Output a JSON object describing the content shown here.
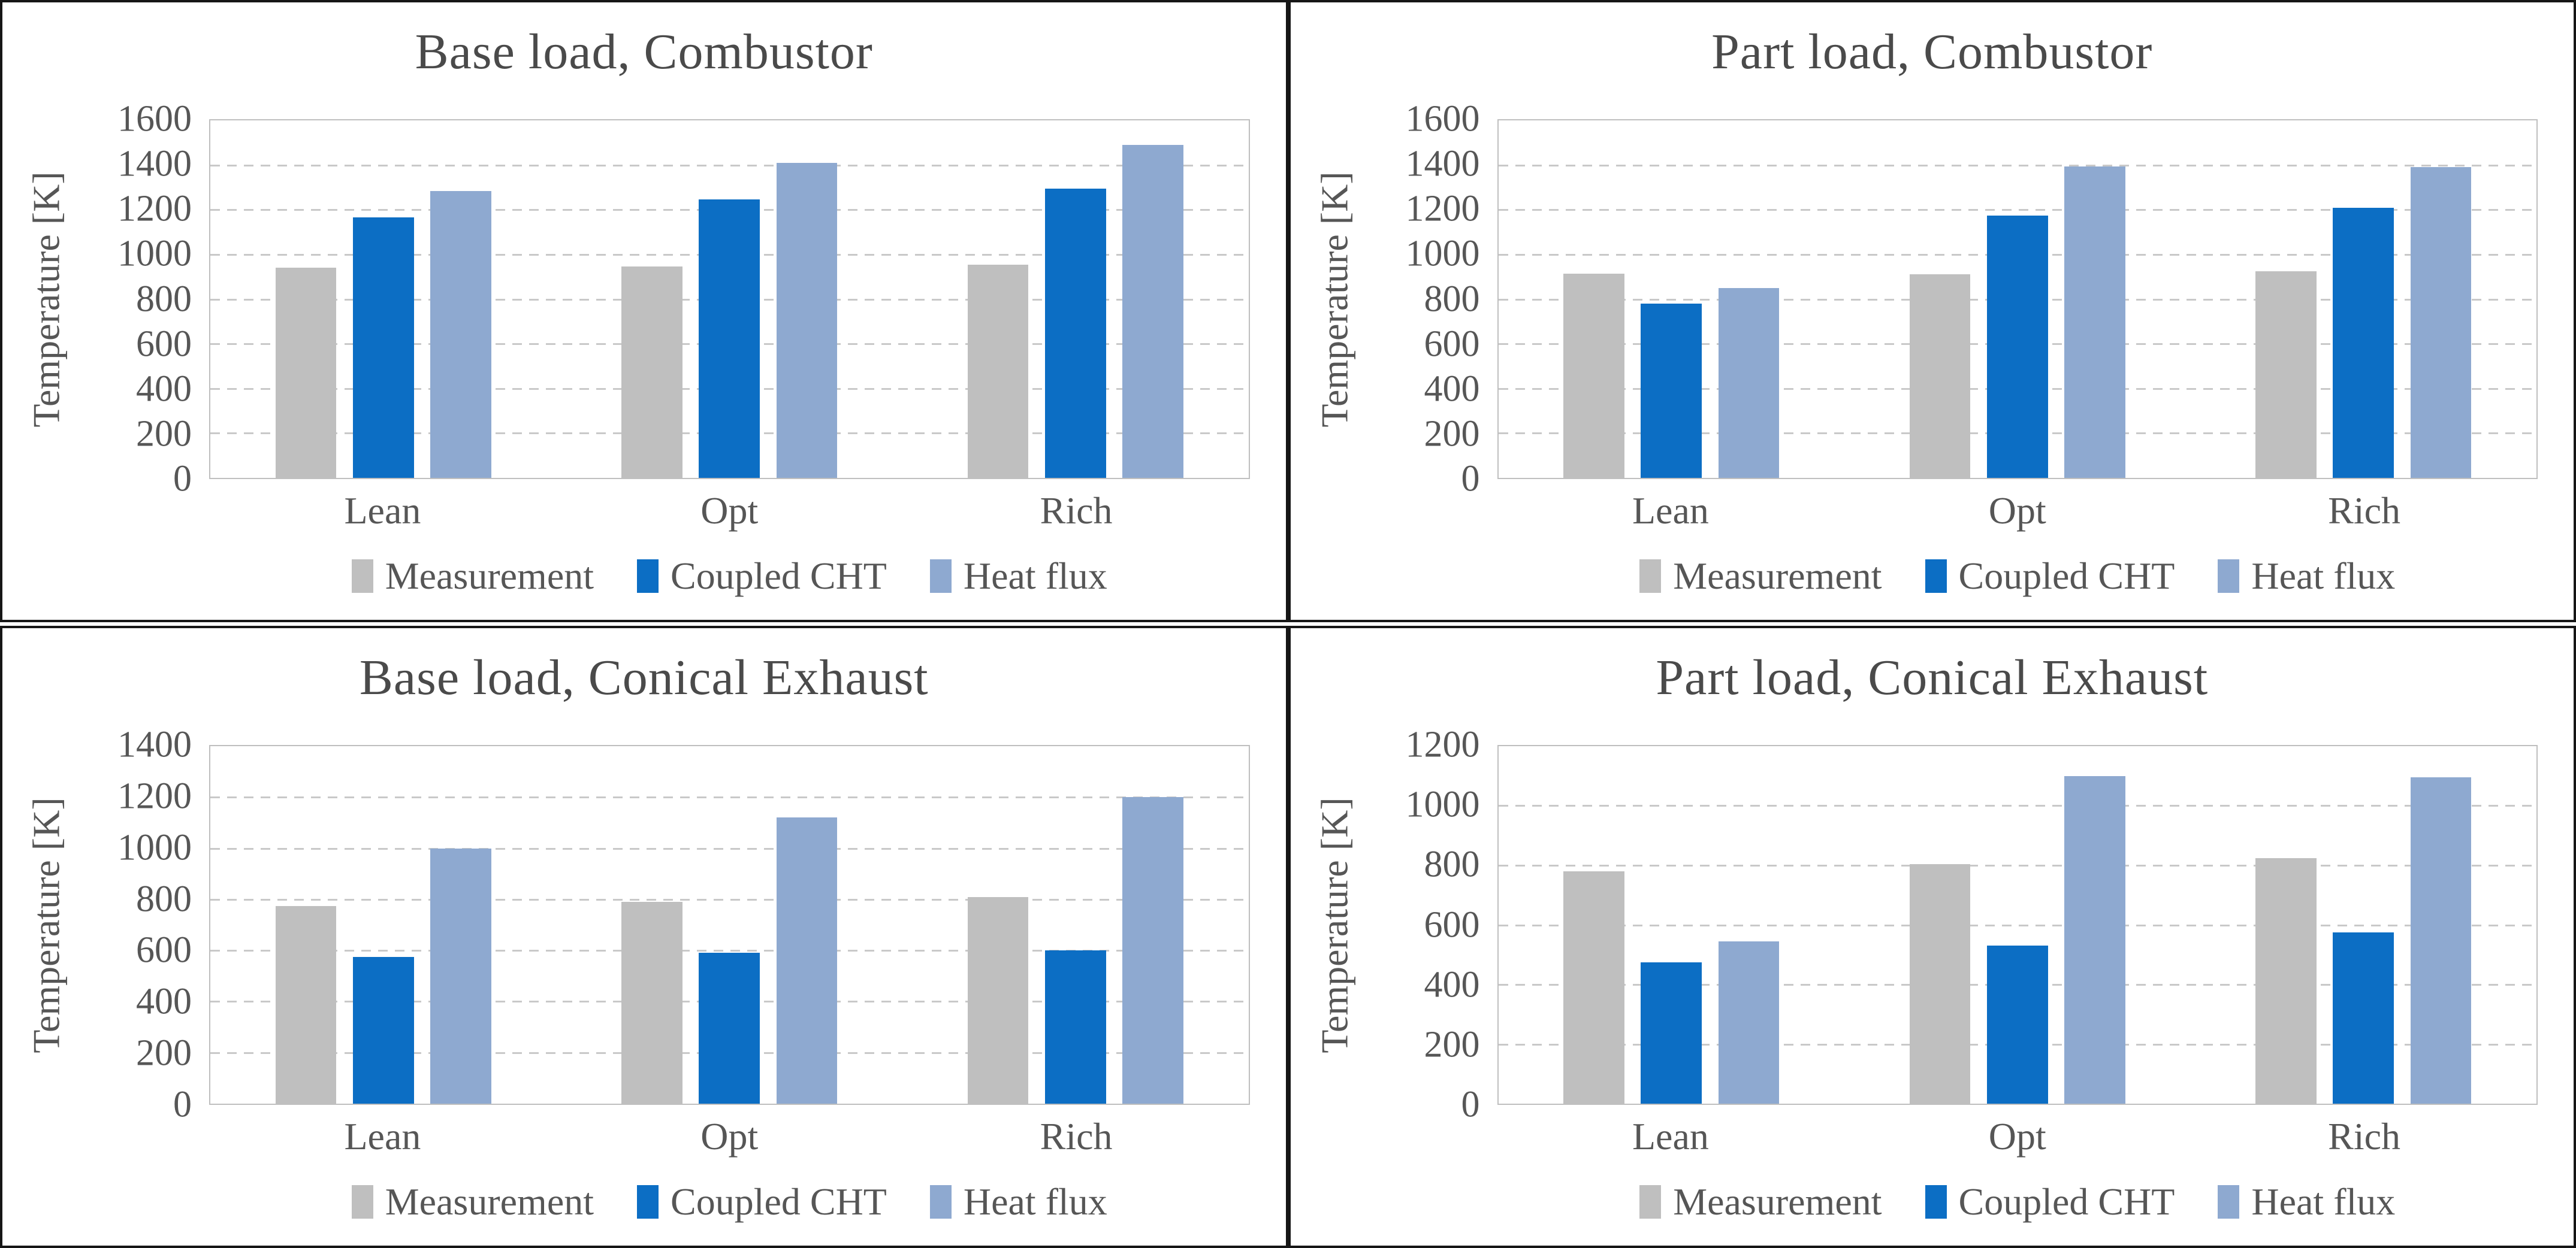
{
  "figure": {
    "ylabel_shared": "Temperature [K]",
    "border_color": "#161616",
    "gridline_color": "#c9c9c9",
    "axis_color": "#bfbfbf",
    "text_color": "#565656"
  },
  "chart_data": [
    {
      "type": "bar",
      "title": "Base load, Combustor",
      "ylabel": "Temperature [K]",
      "ylim": [
        0,
        1600
      ],
      "ytick_step": 200,
      "grid": true,
      "legend_position": "bottom",
      "categories": [
        "Lean",
        "Opt",
        "Rich"
      ],
      "series": [
        {
          "name": "Measurement",
          "color": "#bfbfbf",
          "values": [
            940,
            945,
            955
          ]
        },
        {
          "name": "Coupled CHT",
          "color": "#0c6ec4",
          "values": [
            1165,
            1245,
            1295
          ]
        },
        {
          "name": "Heat flux",
          "color": "#8ea9d0",
          "values": [
            1285,
            1410,
            1490
          ]
        }
      ]
    },
    {
      "type": "bar",
      "title": "Part load, Combustor",
      "ylabel": "Temperature [K]",
      "ylim": [
        0,
        1600
      ],
      "ytick_step": 200,
      "grid": true,
      "legend_position": "bottom",
      "categories": [
        "Lean",
        "Opt",
        "Rich"
      ],
      "series": [
        {
          "name": "Measurement",
          "color": "#bfbfbf",
          "values": [
            915,
            910,
            925
          ]
        },
        {
          "name": "Coupled CHT",
          "color": "#0c6ec4",
          "values": [
            780,
            1175,
            1210
          ]
        },
        {
          "name": "Heat flux",
          "color": "#8ea9d0",
          "values": [
            850,
            1395,
            1390
          ]
        }
      ]
    },
    {
      "type": "bar",
      "title": "Base load, Conical Exhaust",
      "ylabel": "Temperature [K]",
      "ylim": [
        0,
        1400
      ],
      "ytick_step": 200,
      "grid": true,
      "legend_position": "bottom",
      "categories": [
        "Lean",
        "Opt",
        "Rich"
      ],
      "series": [
        {
          "name": "Measurement",
          "color": "#bfbfbf",
          "values": [
            775,
            790,
            810
          ]
        },
        {
          "name": "Coupled CHT",
          "color": "#0c6ec4",
          "values": [
            575,
            590,
            600
          ]
        },
        {
          "name": "Heat flux",
          "color": "#8ea9d0",
          "values": [
            1000,
            1120,
            1200
          ]
        }
      ]
    },
    {
      "type": "bar",
      "title": "Part load, Conical Exhaust",
      "ylabel": "Temperature [K]",
      "ylim": [
        0,
        1200
      ],
      "ytick_step": 200,
      "grid": true,
      "legend_position": "bottom",
      "categories": [
        "Lean",
        "Opt",
        "Rich"
      ],
      "series": [
        {
          "name": "Measurement",
          "color": "#bfbfbf",
          "values": [
            780,
            805,
            825
          ]
        },
        {
          "name": "Coupled CHT",
          "color": "#0c6ec4",
          "values": [
            475,
            530,
            575
          ]
        },
        {
          "name": "Heat flux",
          "color": "#8ea9d0",
          "values": [
            545,
            1100,
            1095
          ]
        }
      ]
    }
  ]
}
